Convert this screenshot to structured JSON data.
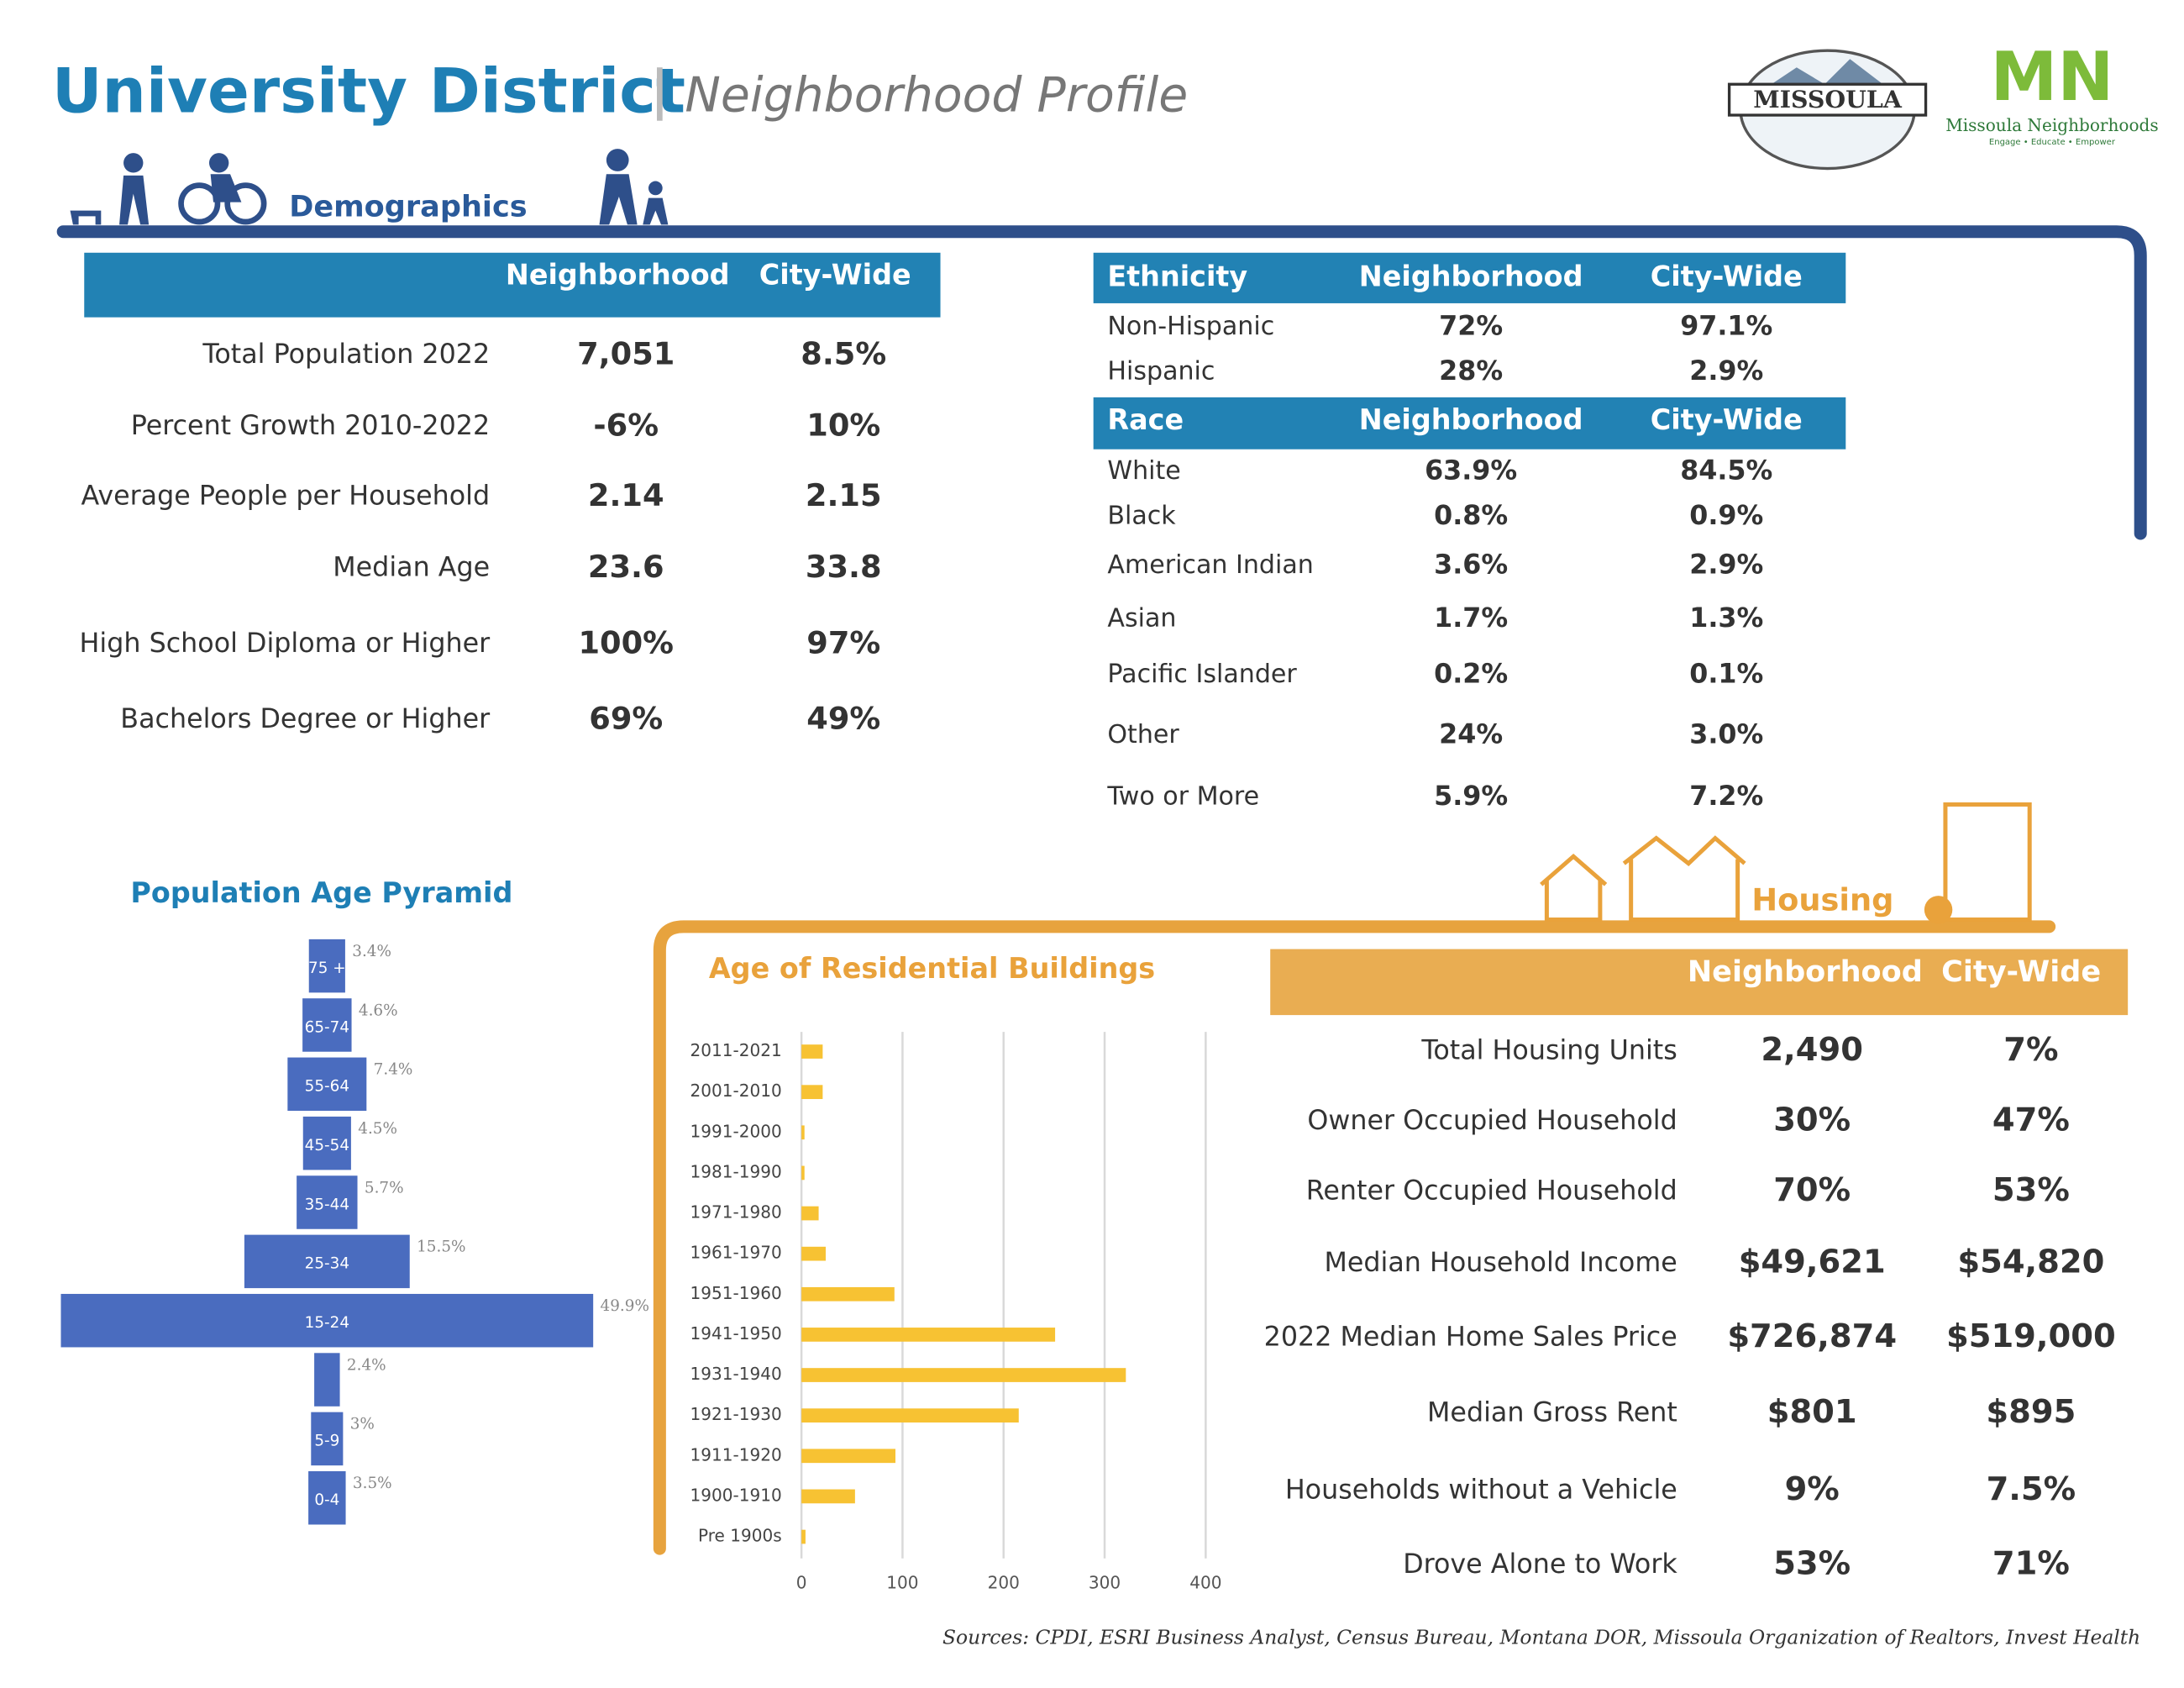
{
  "header": {
    "title": "University District",
    "subtitle": "Neighborhood Profile",
    "logo_city": "MISSOULA",
    "logo_mn": "MN",
    "logo_mn_name": "Missoula Neighborhoods",
    "logo_mn_tagline": "Engage • Educate • Empower"
  },
  "demographics": {
    "title": "Demographics",
    "columns": [
      "Neighborhood",
      "City-Wide"
    ],
    "rows": [
      [
        "Total Population 2022",
        "7,051",
        "8.5%"
      ],
      [
        "Percent Growth 2010-2022",
        "-6%",
        "10%"
      ],
      [
        "Average People per Household",
        "2.14",
        "2.15"
      ],
      [
        "Median Age",
        "23.6",
        "33.8"
      ],
      [
        "High School Diploma or Higher",
        "100%",
        "97%"
      ],
      [
        "Bachelors Degree or Higher",
        "69%",
        "49%"
      ]
    ]
  },
  "ethnicity": {
    "columns": [
      "Ethnicity",
      "Neighborhood",
      "City-Wide"
    ],
    "rows": [
      [
        "Non-Hispanic",
        "72%",
        "97.1%"
      ],
      [
        "Hispanic",
        "28%",
        "2.9%"
      ]
    ]
  },
  "race": {
    "columns": [
      "Race",
      "Neighborhood",
      "City-Wide"
    ],
    "rows": [
      [
        "White",
        "63.9%",
        "84.5%"
      ],
      [
        "Black",
        "0.8%",
        "0.9%"
      ],
      [
        "American Indian",
        "3.6%",
        "2.9%"
      ],
      [
        "Asian",
        "1.7%",
        "1.3%"
      ],
      [
        "Pacific Islander",
        "0.2%",
        "0.1%"
      ],
      [
        "Other",
        "24%",
        "3.0%"
      ],
      [
        "Two or More",
        "5.9%",
        "7.2%"
      ]
    ]
  },
  "housing": {
    "title": "Housing",
    "columns": [
      "Neighborhood",
      "City-Wide"
    ],
    "rows": [
      [
        "Total Housing Units",
        "2,490",
        "7%"
      ],
      [
        "Owner Occupied Household",
        "30%",
        "47%"
      ],
      [
        "Renter Occupied Household",
        "70%",
        "53%"
      ],
      [
        "Median Household Income",
        "$49,621",
        "$54,820"
      ],
      [
        "2022 Median Home Sales Price",
        "$726,874",
        "$519,000"
      ],
      [
        "Median Gross Rent",
        "$801",
        "$895"
      ],
      [
        "Households without a Vehicle",
        "9%",
        "7.5%"
      ],
      [
        "Drove Alone to Work",
        "53%",
        "71%"
      ]
    ]
  },
  "chart_data": [
    {
      "type": "pyramid",
      "title": "Population Age Pyramid",
      "color": "#4a6cbf",
      "categories": [
        "75 +",
        "65-74",
        "55-64",
        "45-54",
        "35-44",
        "25-34",
        "15-24",
        null,
        "5-9",
        "0-4"
      ],
      "values": [
        3.4,
        4.6,
        7.4,
        4.5,
        5.7,
        15.5,
        49.9,
        2.4,
        3,
        3.5
      ],
      "value_labels": [
        "3.4%",
        "4.6%",
        "7.4%",
        "4.5%",
        "5.7%",
        "15.5%",
        "49.9%",
        "2.4%",
        "3%",
        "3.5%"
      ]
    },
    {
      "type": "hbar",
      "title": "Age of Residential Buildings",
      "color": "#f7c233",
      "categories": [
        "2011-2021",
        "2001-2010",
        "1991-2000",
        "1981-1990",
        "1971-1980",
        "1961-1970",
        "1951-1960",
        "1941-1950",
        "1931-1940",
        "1921-1930",
        "1911-1920",
        "1900-1910",
        "Pre 1900s"
      ],
      "values": [
        21,
        21,
        3,
        3,
        17,
        24,
        92,
        251,
        321,
        215,
        93,
        53,
        4
      ],
      "xlim": [
        0,
        400
      ],
      "xticks": [
        0,
        100,
        200,
        300,
        400
      ],
      "grid": true
    }
  ],
  "sources": "Sources: CPDI, ESRI Business Analyst, Census Bureau, Montana DOR, Missoula Organization of Realtors, Invest Health"
}
